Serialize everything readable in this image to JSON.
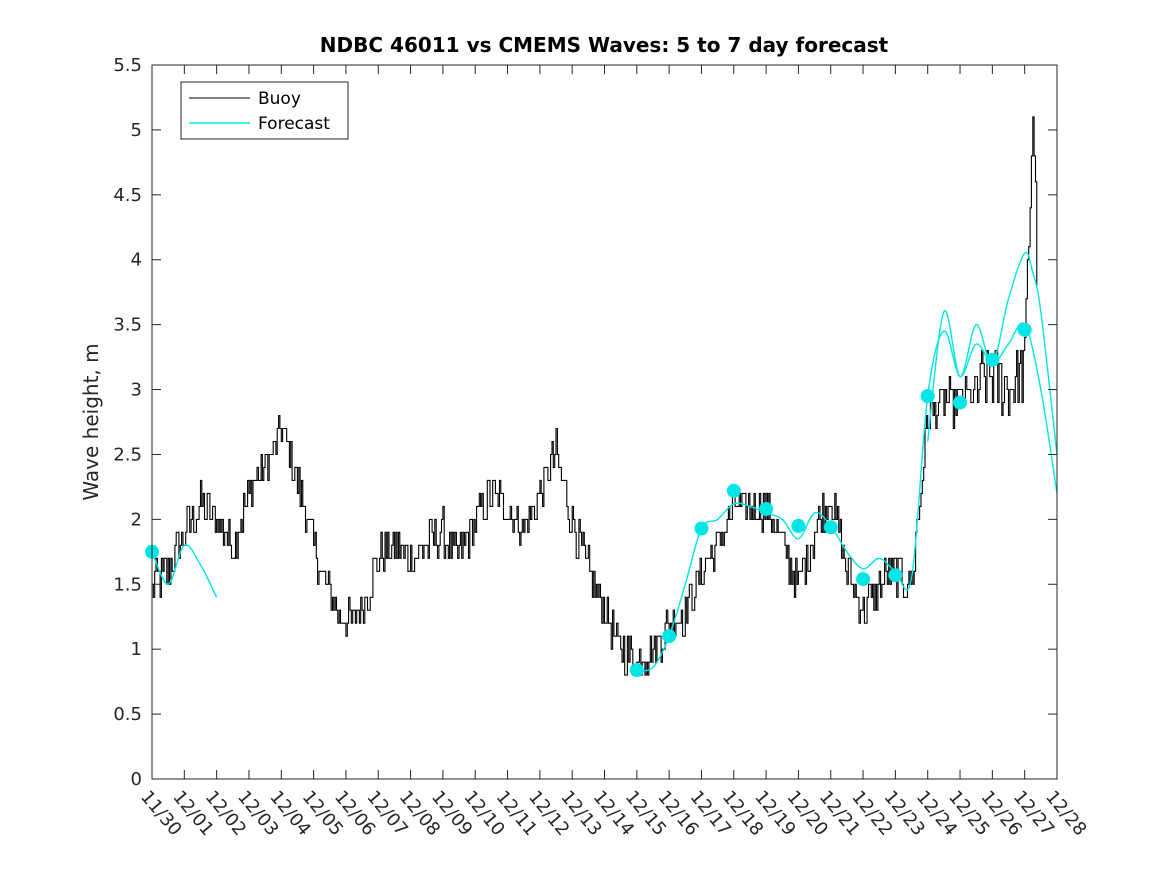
{
  "chart_data": {
    "type": "line",
    "title": "NDBC 46011 vs CMEMS Waves: 5 to 7 day forecast",
    "xlabel": "",
    "ylabel": "Wave height, m",
    "ylim": [
      0,
      5.5
    ],
    "yticks": [
      0,
      0.5,
      1,
      1.5,
      2,
      2.5,
      3,
      3.5,
      4,
      4.5,
      5,
      5.5
    ],
    "xlim": [
      "11/30",
      "12/28"
    ],
    "xticks": [
      "11/30",
      "12/01",
      "12/02",
      "12/03",
      "12/04",
      "12/05",
      "12/06",
      "12/07",
      "12/08",
      "12/09",
      "12/10",
      "12/11",
      "12/12",
      "12/13",
      "12/14",
      "12/15",
      "12/16",
      "12/17",
      "12/18",
      "12/19",
      "12/20",
      "12/21",
      "12/22",
      "12/23",
      "12/24",
      "12/25",
      "12/26",
      "12/27",
      "12/28"
    ],
    "grid": false,
    "legend_position": "top-left",
    "series": [
      {
        "name": "Buoy",
        "color": "#000000",
        "x": [
          "11/30 00:00",
          "11/30 12:00",
          "12/01 00:00",
          "12/01 12:00",
          "12/02 00:00",
          "12/02 12:00",
          "12/03 00:00",
          "12/03 12:00",
          "12/04 00:00",
          "12/04 12:00",
          "12/05 00:00",
          "12/05 12:00",
          "12/06 00:00",
          "12/06 12:00",
          "12/07 00:00",
          "12/07 12:00",
          "12/08 00:00",
          "12/08 12:00",
          "12/09 00:00",
          "12/09 12:00",
          "12/10 00:00",
          "12/10 12:00",
          "12/11 00:00",
          "12/11 12:00",
          "12/12 00:00",
          "12/12 12:00",
          "12/13 00:00",
          "12/13 12:00",
          "12/14 00:00",
          "12/14 12:00",
          "12/15 00:00",
          "12/15 12:00",
          "12/16 00:00",
          "12/16 12:00",
          "12/17 00:00",
          "12/17 12:00",
          "12/18 00:00",
          "12/18 12:00",
          "12/19 00:00",
          "12/19 12:00",
          "12/20 00:00",
          "12/20 12:00",
          "12/21 00:00",
          "12/21 12:00",
          "12/22 00:00",
          "12/22 12:00",
          "12/23 00:00",
          "12/23 12:00",
          "12/24 00:00",
          "12/24 12:00",
          "12/25 00:00",
          "12/25 12:00",
          "12/26 00:00",
          "12/26 12:00",
          "12/27 00:00",
          "12/27 06:00",
          "12/27 09:00"
        ],
        "values": [
          1.5,
          1.6,
          1.9,
          2.1,
          2.0,
          1.8,
          2.2,
          2.4,
          2.7,
          2.3,
          1.8,
          1.4,
          1.2,
          1.3,
          1.7,
          1.8,
          1.7,
          1.8,
          1.9,
          1.7,
          2.0,
          2.2,
          2.1,
          1.9,
          2.2,
          2.5,
          2.0,
          1.6,
          1.3,
          1.0,
          0.9,
          1.0,
          1.2,
          1.3,
          1.6,
          1.8,
          2.1,
          2.1,
          2.1,
          1.8,
          1.5,
          1.9,
          2.2,
          1.6,
          1.3,
          1.5,
          1.6,
          1.5,
          2.8,
          2.9,
          2.9,
          3.0,
          3.1,
          3.0,
          3.2,
          5.2,
          4.0
        ]
      },
      {
        "name": "Forecast",
        "color": "#00e5e5",
        "segments": [
          {
            "x": [
              "11/30 00:00",
              "11/30 12:00",
              "12/01 00:00",
              "12/01 12:00",
              "12/02 00:00"
            ],
            "values": [
              1.75,
              1.5,
              1.8,
              1.65,
              1.4
            ]
          },
          {
            "x": [
              "12/15 00:00",
              "12/15 12:00",
              "12/16 00:00",
              "12/16 12:00",
              "12/17 00:00",
              "12/17 12:00",
              "12/18 00:00",
              "12/18 12:00",
              "12/19 00:00",
              "12/19 12:00",
              "12/20 00:00",
              "12/20 12:00",
              "12/21 00:00",
              "12/21 12:00",
              "12/22 00:00",
              "12/22 12:00",
              "12/23 00:00",
              "12/23 12:00",
              "12/24 00:00",
              "12/24 12:00",
              "12/25 00:00",
              "12/25 12:00",
              "12/26 00:00",
              "12/26 12:00",
              "12/27 00:00",
              "12/27 12:00",
              "12/28 00:00"
            ],
            "values": [
              0.84,
              0.86,
              1.1,
              1.5,
              1.93,
              2.0,
              2.12,
              2.1,
              2.05,
              2.0,
              1.85,
              2.05,
              1.95,
              1.75,
              1.62,
              1.7,
              1.6,
              1.55,
              2.95,
              3.45,
              3.1,
              3.35,
              3.2,
              3.35,
              3.5,
              3.0,
              2.2
            ]
          },
          {
            "x": [
              "12/24 00:00",
              "12/24 12:00",
              "12/25 00:00",
              "12/25 12:00",
              "12/26 00:00",
              "12/26 12:00",
              "12/27 00:00",
              "12/27 06:00",
              "12/27 12:00",
              "12/28 00:00"
            ],
            "values": [
              2.6,
              3.6,
              3.1,
              3.5,
              3.2,
              3.7,
              4.05,
              3.9,
              3.6,
              2.5
            ]
          }
        ],
        "markers": {
          "x": [
            "11/30 00:00",
            "12/15 00:00",
            "12/16 00:00",
            "12/17 00:00",
            "12/18 00:00",
            "12/19 00:00",
            "12/20 00:00",
            "12/21 00:00",
            "12/22 00:00",
            "12/23 00:00",
            "12/24 00:00",
            "12/25 00:00",
            "12/26 00:00",
            "12/27 00:00"
          ],
          "values": [
            1.75,
            0.84,
            1.1,
            1.93,
            2.22,
            2.08,
            1.95,
            1.94,
            1.54,
            1.57,
            2.95,
            2.9,
            3.23,
            3.46
          ]
        }
      }
    ]
  }
}
